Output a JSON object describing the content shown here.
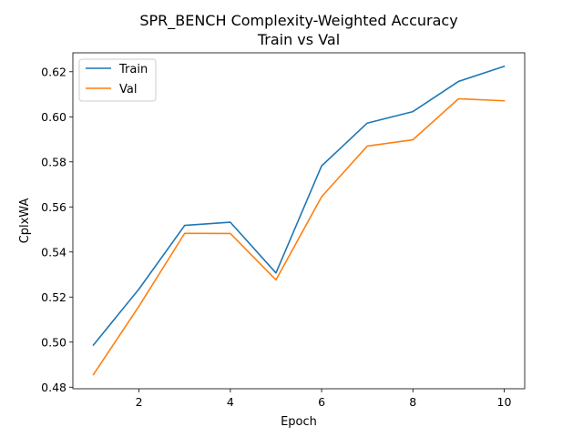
{
  "chart_data": {
    "type": "line",
    "title": "SPR_BENCH Complexity-Weighted Accuracy",
    "subtitle": "Train vs Val",
    "xlabel": "Epoch",
    "ylabel": "CplxWA",
    "x": [
      1,
      2,
      3,
      4,
      5,
      6,
      7,
      8,
      9,
      10
    ],
    "xlim": [
      0.55,
      10.45
    ],
    "ylim": [
      0.4793,
      0.6284
    ],
    "xticks": [
      2,
      4,
      6,
      8,
      10
    ],
    "yticks": [
      0.48,
      0.5,
      0.52,
      0.54,
      0.56,
      0.58,
      0.6,
      0.62
    ],
    "xtick_labels": [
      "2",
      "4",
      "6",
      "8",
      "10"
    ],
    "ytick_labels": [
      "0.48",
      "0.50",
      "0.52",
      "0.54",
      "0.56",
      "0.58",
      "0.60",
      "0.62"
    ],
    "grid": false,
    "legend_position": "top-left",
    "series": [
      {
        "name": "Train",
        "color": "#1f77b4",
        "values": [
          0.4987,
          0.5236,
          0.5518,
          0.5532,
          0.5307,
          0.5782,
          0.5972,
          0.6023,
          0.6157,
          0.6224
        ]
      },
      {
        "name": "Val",
        "color": "#ff7f0e",
        "values": [
          0.4856,
          0.516,
          0.5483,
          0.5482,
          0.5276,
          0.5645,
          0.587,
          0.5898,
          0.608,
          0.6071
        ]
      }
    ]
  }
}
